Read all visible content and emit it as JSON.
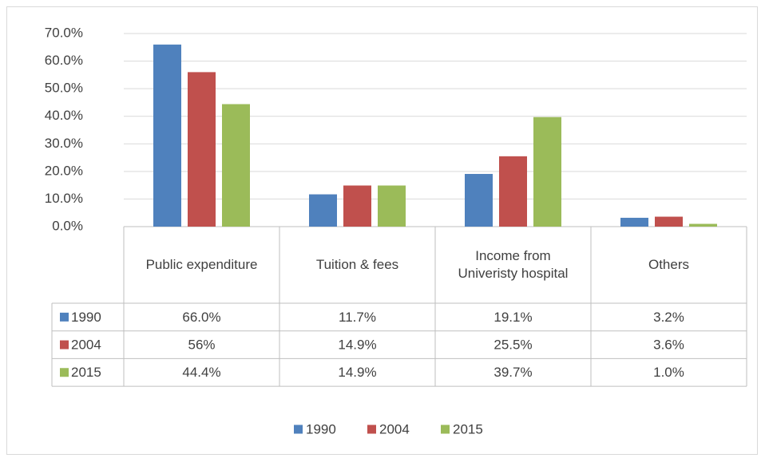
{
  "chart_data": {
    "type": "bar",
    "categories": [
      "Public expenditure",
      "Tuition & fees",
      "Income from Univeristy hospital",
      "Others"
    ],
    "series": [
      {
        "name": "1990",
        "color": "#4f81bd",
        "values": [
          66.0,
          11.7,
          19.1,
          3.2
        ],
        "value_labels": [
          "66.0%",
          "11.7%",
          "19.1%",
          "3.2%"
        ]
      },
      {
        "name": "2004",
        "color": "#c0504d",
        "values": [
          56,
          14.9,
          25.5,
          3.6
        ],
        "value_labels": [
          "56%",
          "14.9%",
          "25.5%",
          "3.6%"
        ]
      },
      {
        "name": "2015",
        "color": "#9bbb59",
        "values": [
          44.4,
          14.9,
          39.7,
          1.0
        ],
        "value_labels": [
          "44.4%",
          "14.9%",
          "39.7%",
          "1.0%"
        ]
      }
    ],
    "ylim": [
      0,
      70
    ],
    "yticks": [
      {
        "value": 0,
        "label": "0.0%"
      },
      {
        "value": 10,
        "label": "10.0%"
      },
      {
        "value": 20,
        "label": "20.0%"
      },
      {
        "value": 30,
        "label": "30.0%"
      },
      {
        "value": 40,
        "label": "40.0%"
      },
      {
        "value": 50,
        "label": "50.0%"
      },
      {
        "value": 60,
        "label": "60.0%"
      },
      {
        "value": 70,
        "label": "70.0%"
      }
    ],
    "grid": true,
    "legend": "bottom"
  }
}
